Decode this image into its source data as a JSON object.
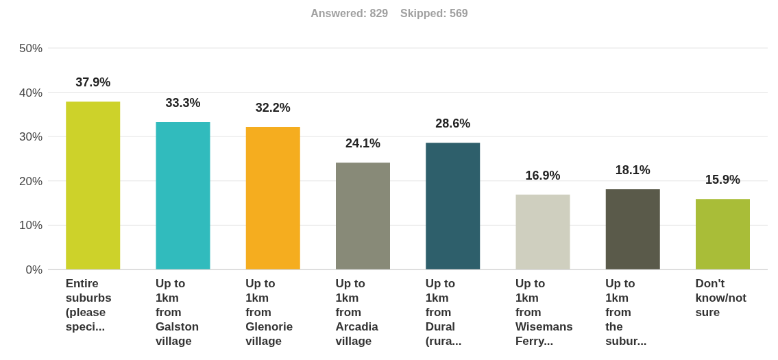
{
  "chart_data": {
    "type": "bar",
    "subtitle": "Answered: 829    Skipped: 569",
    "categories": [
      "Entire suburbs (please speci...",
      "Up to 1km from Galston village",
      "Up to 1km from Glenorie village",
      "Up to 1km from Arcadia village",
      "Up to 1km from Dural (rura...",
      "Up to 1km from Wisemans Ferry...",
      "Up to 1km from the subur...",
      "Don't know/not sure"
    ],
    "values": [
      37.9,
      33.3,
      32.2,
      24.1,
      28.6,
      16.9,
      18.1,
      15.9
    ],
    "colors": [
      "#cdd22a",
      "#31bbbd",
      "#f5ad1f",
      "#888a78",
      "#2e5f6b",
      "#cfcfbf",
      "#5a5a4a",
      "#a9bd38"
    ],
    "value_labels": [
      "37.9%",
      "33.3%",
      "32.2%",
      "24.1%",
      "28.6%",
      "16.9%",
      "18.1%",
      "15.9%"
    ],
    "ylim": [
      0,
      50
    ],
    "yticks": [
      {
        "value": 0,
        "label": "0%"
      },
      {
        "value": 10,
        "label": "10%"
      },
      {
        "value": 20,
        "label": "20%"
      },
      {
        "value": 30,
        "label": "30%"
      },
      {
        "value": 40,
        "label": "40%"
      },
      {
        "value": 50,
        "label": "50%"
      }
    ],
    "grid": "y",
    "legend": false
  }
}
